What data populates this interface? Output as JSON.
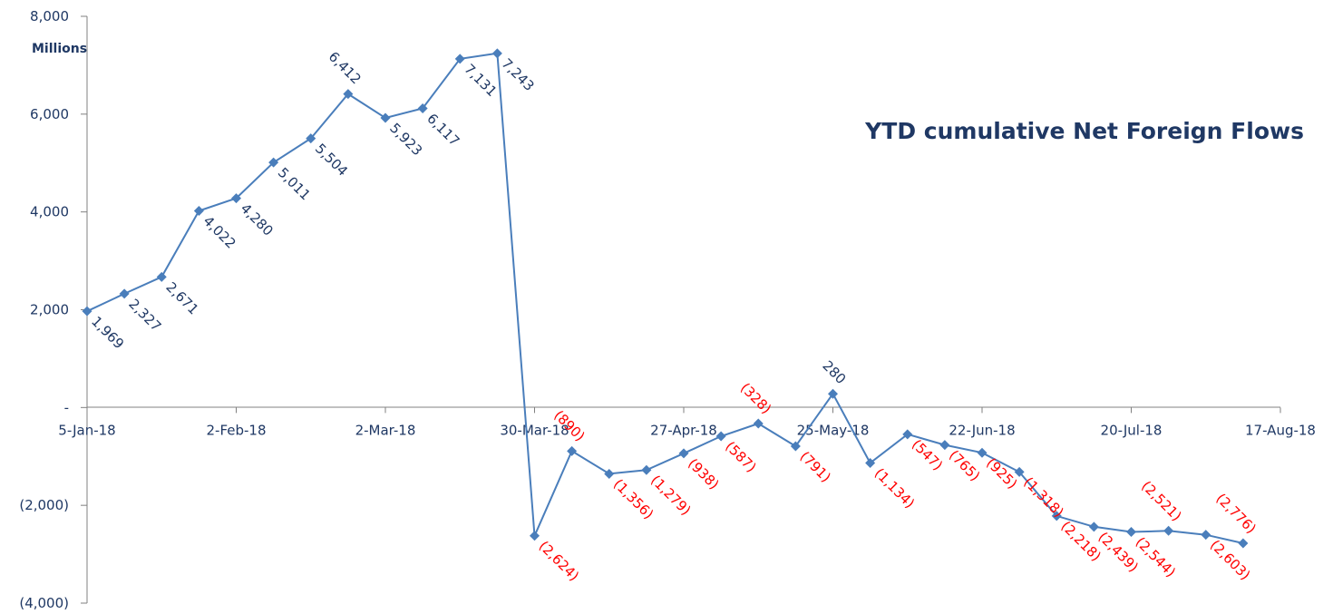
{
  "chart_data": {
    "type": "line",
    "title": "YTD cumulative Net Foreign Flows",
    "unit_label": "Millions",
    "ylim": [
      -4000,
      8000
    ],
    "y_ticks": [
      {
        "value": 8000,
        "label": "8,000"
      },
      {
        "value": 6000,
        "label": "6,000"
      },
      {
        "value": 4000,
        "label": "4,000"
      },
      {
        "value": 2000,
        "label": "2,000"
      },
      {
        "value": 0,
        "label": "-"
      },
      {
        "value": -2000,
        "label": "(2,000)"
      },
      {
        "value": -4000,
        "label": "(4,000)"
      }
    ],
    "x_ticks": [
      "5-Jan-18",
      "2-Feb-18",
      "2-Mar-18",
      "30-Mar-18",
      "27-Apr-18",
      "25-May-18",
      "22-Jun-18",
      "20-Jul-18",
      "17-Aug-18"
    ],
    "x_tick_interval_weeks": 4,
    "series": [
      {
        "color": "#4a7ebb",
        "points": [
          {
            "x": "5-Jan-18",
            "y": 1969,
            "label": "1,969"
          },
          {
            "x": "12-Jan-18",
            "y": 2327,
            "label": "2,327"
          },
          {
            "x": "19-Jan-18",
            "y": 2671,
            "label": "2,671"
          },
          {
            "x": "26-Jan-18",
            "y": 4022,
            "label": "4,022"
          },
          {
            "x": "2-Feb-18",
            "y": 4280,
            "label": "4,280"
          },
          {
            "x": "9-Feb-18",
            "y": 5011,
            "label": "5,011"
          },
          {
            "x": "16-Feb-18",
            "y": 5504,
            "label": "5,504"
          },
          {
            "x": "23-Feb-18",
            "y": 6412,
            "label": "6,412"
          },
          {
            "x": "2-Mar-18",
            "y": 5923,
            "label": "5,923"
          },
          {
            "x": "9-Mar-18",
            "y": 6117,
            "label": "6,117"
          },
          {
            "x": "16-Mar-18",
            "y": 7131,
            "label": "7,131"
          },
          {
            "x": "23-Mar-18",
            "y": 7243,
            "label": "7,243"
          },
          {
            "x": "30-Mar-18",
            "y": -2624,
            "label": "(2,624)"
          },
          {
            "x": "6-Apr-18",
            "y": -890,
            "label": "(890)"
          },
          {
            "x": "13-Apr-18",
            "y": -1356,
            "label": "(1,356)"
          },
          {
            "x": "20-Apr-18",
            "y": -1279,
            "label": "(1,279)"
          },
          {
            "x": "27-Apr-18",
            "y": -938,
            "label": "(938)"
          },
          {
            "x": "4-May-18",
            "y": -587,
            "label": "(587)"
          },
          {
            "x": "11-May-18",
            "y": -328,
            "label": "(328)"
          },
          {
            "x": "18-May-18",
            "y": -791,
            "label": "(791)"
          },
          {
            "x": "25-May-18",
            "y": 280,
            "label": "280"
          },
          {
            "x": "1-Jun-18",
            "y": -1134,
            "label": "(1,134)"
          },
          {
            "x": "8-Jun-18",
            "y": -547,
            "label": "(547)"
          },
          {
            "x": "15-Jun-18",
            "y": -765,
            "label": "(765)"
          },
          {
            "x": "22-Jun-18",
            "y": -925,
            "label": "(925)"
          },
          {
            "x": "29-Jun-18",
            "y": -1318,
            "label": "(1,318)"
          },
          {
            "x": "6-Jul-18",
            "y": -2218,
            "label": "(2,218)"
          },
          {
            "x": "13-Jul-18",
            "y": -2439,
            "label": "(2,439)"
          },
          {
            "x": "20-Jul-18",
            "y": -2544,
            "label": "(2,544)"
          },
          {
            "x": "27-Jul-18",
            "y": -2521,
            "label": "(2,521)"
          },
          {
            "x": "3-Aug-18",
            "y": -2603,
            "label": "(2,603)"
          },
          {
            "x": "10-Aug-18",
            "y": -2776,
            "label": "(2,776)"
          }
        ]
      }
    ],
    "positive_label_color": "#1f3864",
    "negative_label_color": "#ff0000",
    "axis_color": "#808080",
    "grid": false,
    "legend": "none"
  }
}
